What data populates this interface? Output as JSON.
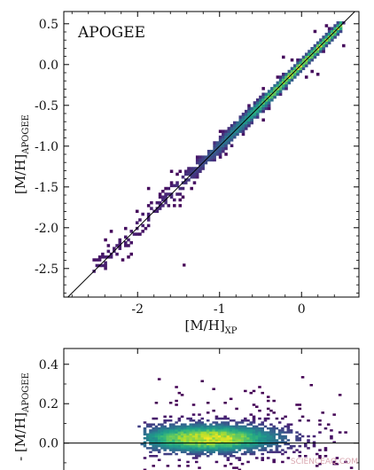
{
  "chart_data": [
    {
      "type": "heatmap",
      "panel_label": "APOGEE",
      "xlabel": "[M/H]",
      "xlabel_sub": "XP",
      "ylabel": "[M/H]",
      "ylabel_sub": "APOGEE",
      "xlim": [
        -2.9,
        0.7
      ],
      "ylim": [
        -2.85,
        0.65
      ],
      "x_ticks": [
        -2,
        -1,
        0
      ],
      "x_tick_labels": [
        "-2",
        "-1",
        "0"
      ],
      "y_ticks": [
        0.5,
        0.0,
        -0.5,
        -1.0,
        -1.5,
        -2.0,
        -2.5
      ],
      "y_tick_labels": [
        "0.5",
        "0.0",
        "-0.5",
        "-1.0",
        "-1.5",
        "-2.0",
        "-2.5"
      ],
      "reference_line": "one-to-one",
      "colormap": "viridis",
      "density_peak_x": 0.0,
      "density_peak_y": 0.0
    },
    {
      "type": "heatmap",
      "ylabel": "[M/H]",
      "ylabel_sub": "APOGEE",
      "ylabel_prefix": "-",
      "xlim": [
        -2.9,
        0.7
      ],
      "ylim": [
        -0.15,
        0.48
      ],
      "y_ticks": [
        0.4,
        0.2,
        0.0
      ],
      "y_tick_labels": [
        "0.4",
        "0.2",
        "0.0"
      ],
      "reference_line": "zero",
      "colormap": "viridis",
      "density_peak_x": -1.1
    }
  ],
  "watermark": "SCIENCEAQ.COM"
}
